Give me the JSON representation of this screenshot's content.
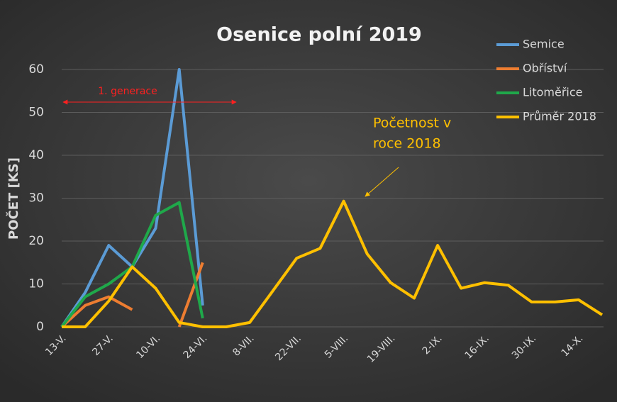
{
  "chart_data": {
    "type": "line",
    "title": "Osenice polní 2019",
    "y_label": "POČET [KS]",
    "categories": [
      "13-V.",
      null,
      "27-V.",
      null,
      "10-VI.",
      null,
      "24-VI.",
      null,
      "8-VII.",
      null,
      "22-VII.",
      null,
      "5-VIII.",
      null,
      "19-VIII.",
      null,
      "2-IX.",
      null,
      "16-IX.",
      null,
      "30-IX.",
      null,
      "14-X.",
      null
    ],
    "series": [
      {
        "name": "Semice",
        "color": "#5b9bd5",
        "values": [
          0,
          8,
          19,
          14,
          23,
          60,
          5,
          null,
          null,
          null,
          null,
          null,
          null,
          null,
          null,
          null,
          null,
          null,
          null,
          null,
          null,
          null,
          null,
          null
        ]
      },
      {
        "name": "Obříství",
        "color": "#ed7d31",
        "values": [
          0,
          5,
          7,
          4,
          null,
          0,
          15,
          null,
          null,
          null,
          null,
          null,
          null,
          null,
          null,
          null,
          null,
          null,
          null,
          null,
          null,
          null,
          null,
          null
        ]
      },
      {
        "name": "Litoměřice",
        "color": "#1fa84a",
        "values": [
          0,
          7,
          10,
          14,
          26,
          29,
          2,
          null,
          null,
          null,
          null,
          null,
          null,
          null,
          null,
          null,
          null,
          null,
          null,
          null,
          null,
          null,
          null,
          null
        ]
      },
      {
        "name": "Průměr 2018",
        "color": "#ffc000",
        "values": [
          0,
          0,
          6,
          14,
          9,
          1,
          0,
          0,
          1,
          8.5,
          16,
          18.3,
          29.3,
          17,
          10.3,
          6.7,
          19,
          9,
          10.3,
          9.7,
          5.8,
          5.8,
          6.3,
          2.8
        ]
      }
    ],
    "ylim": [
      0,
      60
    ],
    "yticks": [
      0,
      10,
      20,
      30,
      40,
      50,
      60
    ],
    "grid": true,
    "legend": "top-right",
    "annotations": [
      {
        "text": "1. generace",
        "color": "#ff2020"
      },
      {
        "lines": [
          "Početnost v",
          "roce 2018"
        ],
        "color": "#ffc000"
      }
    ]
  }
}
